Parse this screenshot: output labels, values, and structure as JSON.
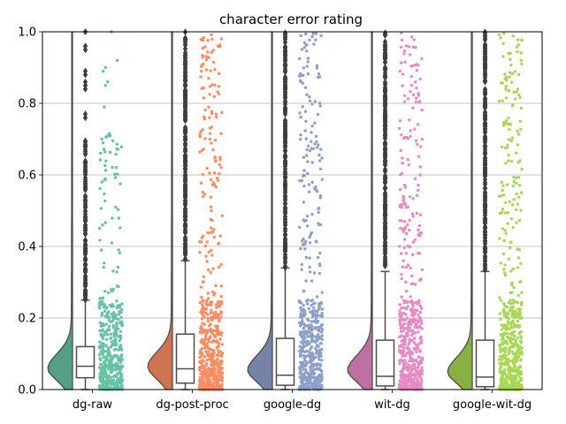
{
  "chart_data": {
    "type": "raincloud",
    "title": "character error rating",
    "xlabel": "",
    "ylabel": "",
    "ylim": [
      0,
      1
    ],
    "yticks": [
      "0.0",
      "0.2",
      "0.4",
      "0.6",
      "0.8",
      "1.0"
    ],
    "grid": "horizontal",
    "categories": [
      "dg-raw",
      "dg-post-proc",
      "google-dg",
      "wit-dg",
      "google-wit-dg"
    ],
    "colors": [
      "#66c2a5",
      "#fc8d62",
      "#8da0cb",
      "#e78ac3",
      "#a6d854"
    ],
    "series": [
      {
        "label": "dg-raw",
        "box": {
          "q1": 0.033,
          "median": 0.065,
          "q3": 0.12,
          "whisker_low": 0.0,
          "whisker_high": 0.25
        },
        "density_peak": 0.055,
        "points_upper_max": 1.0
      },
      {
        "label": "dg-post-proc",
        "box": {
          "q1": 0.018,
          "median": 0.058,
          "q3": 0.155,
          "whisker_low": 0.0,
          "whisker_high": 0.36
        },
        "density_peak": 0.06,
        "points_upper_max": 1.0
      },
      {
        "label": "google-dg",
        "box": {
          "q1": 0.012,
          "median": 0.04,
          "q3": 0.143,
          "whisker_low": 0.0,
          "whisker_high": 0.34
        },
        "density_peak": 0.05,
        "points_upper_max": 1.0
      },
      {
        "label": "wit-dg",
        "box": {
          "q1": 0.01,
          "median": 0.037,
          "q3": 0.138,
          "whisker_low": 0.0,
          "whisker_high": 0.33
        },
        "density_peak": 0.05,
        "points_upper_max": 1.0
      },
      {
        "label": "google-wit-dg",
        "box": {
          "q1": 0.008,
          "median": 0.035,
          "q3": 0.138,
          "whisker_low": 0.0,
          "whisker_high": 0.33
        },
        "density_peak": 0.045,
        "points_upper_max": 1.0
      }
    ]
  }
}
